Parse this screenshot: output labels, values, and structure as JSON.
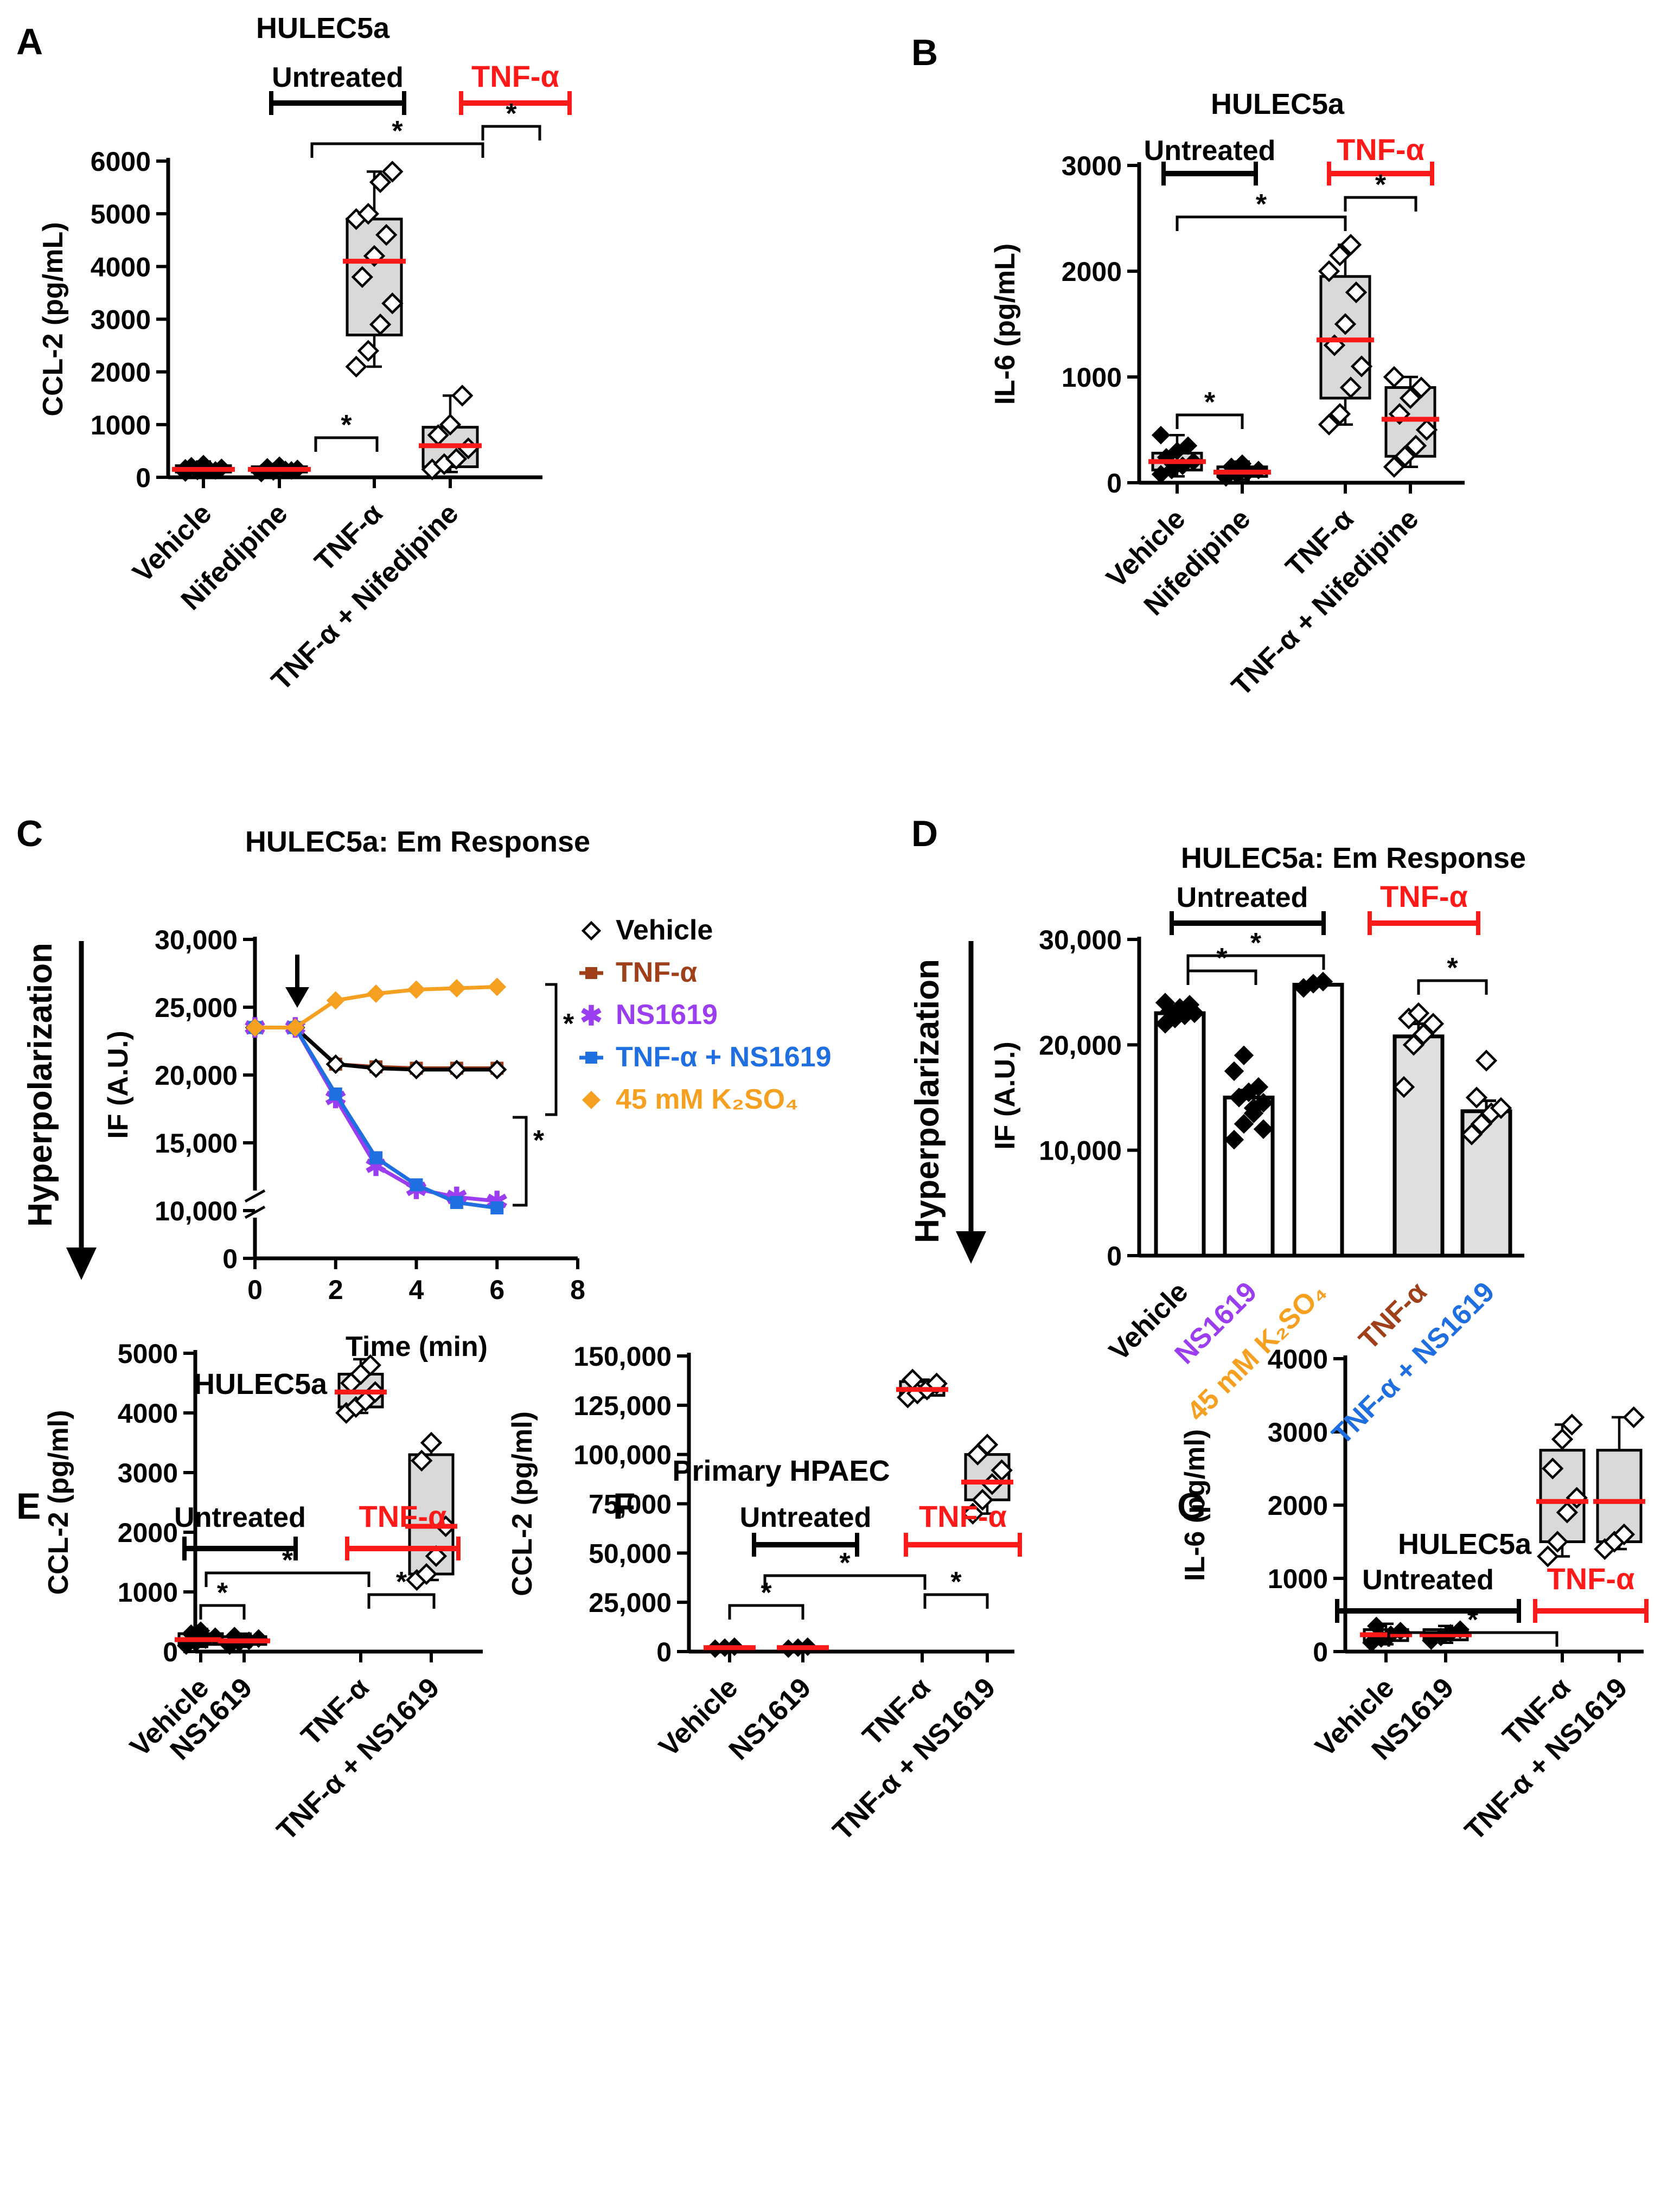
{
  "colors": {
    "black": "#000000",
    "red": "#ff1a1a",
    "box_fill": "#d9d9d9",
    "bar_fill": "#e0e0e0",
    "brown": "#a0401a",
    "purple": "#9b3df0",
    "blue": "#1f6fe0",
    "orange": "#f5a020"
  },
  "panels": {
    "A": {
      "letter": "A",
      "title": "HULEC5a",
      "ylabel": "CCL-2 (pg/mL)",
      "untreated": "Untreated",
      "treated": "TNF-α",
      "star": "*"
    },
    "B": {
      "letter": "B",
      "title": "HULEC5a",
      "ylabel": "IL-6 (pg/mL)",
      "untreated": "Untreated",
      "treated": "TNF-α",
      "star": "*"
    },
    "C": {
      "letter": "C",
      "title": "HULEC5a: Em Response",
      "ylabel": "IF (A.U.)",
      "arrow_label": "Hyperpolarization",
      "xlabel": "Time (min)",
      "star": "*"
    },
    "D": {
      "letter": "D",
      "title": "HULEC5a: Em Response",
      "ylabel": "IF (A.U.)",
      "arrow_label": "Hyperpolarization",
      "untreated": "Untreated",
      "treated": "TNF-α",
      "star": "*"
    },
    "E": {
      "letter": "E",
      "title": "HULEC5a",
      "ylabel": "CCL-2 (pg/ml)",
      "untreated": "Untreated",
      "treated": "TNF-α",
      "star": "*"
    },
    "F": {
      "letter": "F",
      "title": "Primary HPAEC",
      "ylabel": "CCL-2 (pg/ml)",
      "untreated": "Untreated",
      "treated": "TNF-α",
      "star": "*"
    },
    "G": {
      "letter": "G",
      "title": "HULEC5a",
      "ylabel": "IL-6 (pg/ml)",
      "untreated": "Untreated",
      "treated": "TNF-α",
      "star": "*"
    }
  },
  "chart_data": [
    {
      "panel": "A",
      "type": "box",
      "title": "HULEC5a",
      "ylabel": "CCL-2 (pg/mL)",
      "ylim": [
        0,
        6000
      ],
      "yticks": [
        "0",
        "1000",
        "2000",
        "3000",
        "4000",
        "5000",
        "6000"
      ],
      "categories": [
        "Vehicle",
        "Nifedipine",
        "TNF-α",
        "TNF-α + Nifedipine"
      ],
      "groups": [
        {
          "median": 150,
          "q1": 100,
          "q3": 220,
          "min": 50,
          "max": 300,
          "points": [
            90,
            120,
            150,
            180,
            210,
            250,
            130,
            170
          ]
        },
        {
          "median": 150,
          "q1": 100,
          "q3": 200,
          "min": 60,
          "max": 250,
          "points": [
            80,
            110,
            140,
            160,
            190,
            220,
            130
          ]
        },
        {
          "median": 4100,
          "q1": 2700,
          "q3": 4900,
          "min": 2100,
          "max": 5800,
          "points": [
            2100,
            2400,
            2900,
            3300,
            3800,
            4200,
            4600,
            4900,
            5000,
            5600,
            5800
          ]
        },
        {
          "median": 600,
          "q1": 200,
          "q3": 950,
          "min": 100,
          "max": 1550,
          "points": [
            150,
            250,
            350,
            550,
            800,
            1000,
            1550
          ]
        }
      ]
    },
    {
      "panel": "B",
      "type": "box",
      "title": "HULEC5a",
      "ylabel": "IL-6 (pg/mL)",
      "ylim": [
        0,
        3000
      ],
      "yticks": [
        "0",
        "1000",
        "2000",
        "3000"
      ],
      "categories": [
        "Vehicle",
        "Nifedipine",
        "TNF-α",
        "TNF-α + Nifedipine"
      ],
      "groups": [
        {
          "median": 200,
          "q1": 120,
          "q3": 280,
          "min": 60,
          "max": 450,
          "points": [
            80,
            120,
            160,
            200,
            240,
            300,
            350,
            450
          ]
        },
        {
          "median": 100,
          "q1": 60,
          "q3": 150,
          "min": 30,
          "max": 200,
          "points": [
            50,
            80,
            100,
            120,
            150,
            180
          ]
        },
        {
          "median": 1350,
          "q1": 800,
          "q3": 1950,
          "min": 550,
          "max": 2250,
          "points": [
            550,
            650,
            900,
            1100,
            1300,
            1500,
            1800,
            2000,
            2150,
            2250
          ]
        },
        {
          "median": 600,
          "q1": 250,
          "q3": 900,
          "min": 150,
          "max": 1000,
          "points": [
            150,
            250,
            350,
            500,
            650,
            800,
            900,
            1000
          ]
        }
      ]
    },
    {
      "panel": "C",
      "type": "line",
      "title": "HULEC5a: Em Response",
      "xlabel": "Time (min)",
      "ylabel": "IF (A.U.)",
      "xlim": [
        0,
        8
      ],
      "xticks": [
        "0",
        "2",
        "4",
        "6",
        "8"
      ],
      "yticks": [
        "0",
        "10,000",
        "15,000",
        "20,000",
        "25,000",
        "30,000"
      ],
      "x": [
        0,
        1,
        2,
        3,
        4,
        5,
        6
      ],
      "series": [
        {
          "name": "Vehicle",
          "values": [
            23500,
            23500,
            20800,
            20500,
            20400,
            20400,
            20400
          ]
        },
        {
          "name": "TNF-α",
          "values": [
            23500,
            23500,
            20800,
            20600,
            20500,
            20500,
            20500
          ]
        },
        {
          "name": "NS1619",
          "values": [
            23500,
            23500,
            18300,
            13300,
            11600,
            11000,
            10700
          ]
        },
        {
          "name": "TNF-α + NS1619",
          "values": [
            23500,
            23500,
            18600,
            13900,
            11900,
            10600,
            10200
          ]
        },
        {
          "name": "45 mM K₂SO₄",
          "values": [
            23500,
            23500,
            25500,
            26000,
            26300,
            26400,
            26500
          ]
        }
      ],
      "legend_position": "right",
      "star": "*"
    },
    {
      "panel": "D",
      "type": "bar",
      "title": "HULEC5a: Em Response",
      "ylabel": "IF (A.U.)",
      "ylim": [
        0,
        30000
      ],
      "yticks": [
        "0",
        "10,000",
        "20,000",
        "30,000"
      ],
      "categories": [
        "Vehicle",
        "NS1619",
        "45 mM K₂SO₄",
        "TNF-α",
        "TNF-α + NS1619"
      ],
      "values": [
        23000,
        15000,
        25700,
        20800,
        13700
      ],
      "errors": [
        600,
        700,
        300,
        1200,
        1000
      ],
      "points": [
        [
          22000,
          22500,
          22800,
          23000,
          23200,
          23500,
          23800,
          24000,
          22600,
          23300
        ],
        [
          11000,
          12500,
          13500,
          14500,
          15000,
          15500,
          16000,
          17500,
          19000,
          14000,
          12000
        ],
        [
          25400,
          25800,
          26000
        ],
        [
          16000,
          20000,
          21000,
          22000,
          22500,
          23000
        ],
        [
          11500,
          12500,
          13500,
          14000,
          15000,
          18500
        ]
      ]
    },
    {
      "panel": "E",
      "type": "box",
      "title": "HULEC5a",
      "ylabel": "CCL-2 (pg/ml)",
      "ylim": [
        0,
        5000
      ],
      "yticks": [
        "0",
        "1000",
        "2000",
        "3000",
        "4000",
        "5000"
      ],
      "categories": [
        "Vehicle",
        "NS1619",
        "TNF-α",
        "TNF-α + NS1619"
      ],
      "groups": [
        {
          "median": 200,
          "q1": 120,
          "q3": 300,
          "min": 80,
          "max": 380,
          "points": [
            100,
            150,
            200,
            250,
            300,
            350
          ]
        },
        {
          "median": 180,
          "q1": 120,
          "q3": 250,
          "min": 80,
          "max": 300,
          "points": [
            100,
            150,
            180,
            220,
            260
          ]
        },
        {
          "median": 4350,
          "q1": 4100,
          "q3": 4650,
          "min": 4000,
          "max": 4900,
          "points": [
            4000,
            4100,
            4200,
            4350,
            4500,
            4650,
            4800
          ]
        },
        {
          "median": 2100,
          "q1": 1300,
          "q3": 3300,
          "min": 1200,
          "max": 3500,
          "points": [
            1200,
            1300,
            1600,
            2100,
            3200,
            3500
          ]
        }
      ]
    },
    {
      "panel": "F",
      "type": "box",
      "title": "Primary HPAEC",
      "ylabel": "CCL-2 (pg/ml)",
      "ylim": [
        0,
        150000
      ],
      "yticks": [
        "0",
        "25,000",
        "50,000",
        "75,000",
        "100,000",
        "125,000",
        "150,000"
      ],
      "categories": [
        "Vehicle",
        "NS1619",
        "TNF-α",
        "TNF-α + NS1619"
      ],
      "groups": [
        {
          "median": 2000,
          "q1": 1500,
          "q3": 2500,
          "min": 1000,
          "max": 3000,
          "points": [
            1500,
            2000,
            2500
          ]
        },
        {
          "median": 2000,
          "q1": 1500,
          "q3": 2500,
          "min": 1000,
          "max": 3000,
          "points": [
            1500,
            2000,
            2500
          ]
        },
        {
          "median": 133000,
          "q1": 130000,
          "q3": 137000,
          "min": 129000,
          "max": 138000,
          "points": [
            129000,
            131000,
            133000,
            136000,
            138000
          ]
        },
        {
          "median": 86000,
          "q1": 77000,
          "q3": 100000,
          "min": 70000,
          "max": 105000,
          "points": [
            70000,
            77000,
            85000,
            92000,
            100000,
            105000
          ]
        }
      ]
    },
    {
      "panel": "G",
      "type": "box",
      "title": "HULEC5a",
      "ylabel": "IL-6 (pg/ml)",
      "ylim": [
        0,
        4000
      ],
      "yticks": [
        "0",
        "1000",
        "2000",
        "3000",
        "4000"
      ],
      "categories": [
        "Vehicle",
        "NS1619",
        "TNF-α",
        "TNF-α + NS1619"
      ],
      "groups": [
        {
          "median": 230,
          "q1": 150,
          "q3": 300,
          "min": 100,
          "max": 380,
          "points": [
            120,
            180,
            230,
            280,
            350
          ]
        },
        {
          "median": 230,
          "q1": 160,
          "q3": 300,
          "min": 120,
          "max": 350,
          "points": [
            150,
            200,
            250,
            300
          ]
        },
        {
          "median": 2050,
          "q1": 1500,
          "q3": 2750,
          "min": 1300,
          "max": 3100,
          "points": [
            1300,
            1500,
            1900,
            2100,
            2500,
            2900,
            3100
          ]
        },
        {
          "median": 2050,
          "q1": 1500,
          "q3": 2750,
          "min": 1400,
          "max": 3200,
          "points": [
            1400,
            1500,
            1600,
            3200
          ]
        }
      ]
    }
  ]
}
